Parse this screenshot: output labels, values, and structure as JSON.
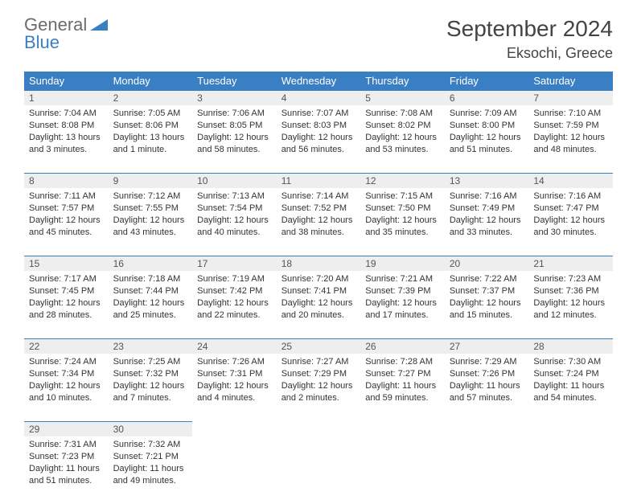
{
  "logo": {
    "line1": "General",
    "line2": "Blue"
  },
  "title": "September 2024",
  "location": "Eksochi, Greece",
  "colors": {
    "header_bg": "#3a7fc4",
    "header_text": "#ffffff",
    "daynum_bg": "#eeeeee",
    "rule": "#3a7fc4",
    "text": "#333333",
    "logo_gray": "#6b6b6b",
    "logo_blue": "#3a7fc4"
  },
  "weekdays": [
    "Sunday",
    "Monday",
    "Tuesday",
    "Wednesday",
    "Thursday",
    "Friday",
    "Saturday"
  ],
  "weeks": [
    [
      {
        "n": "1",
        "sr": "7:04 AM",
        "ss": "8:08 PM",
        "dl": "13 hours and 3 minutes."
      },
      {
        "n": "2",
        "sr": "7:05 AM",
        "ss": "8:06 PM",
        "dl": "13 hours and 1 minute."
      },
      {
        "n": "3",
        "sr": "7:06 AM",
        "ss": "8:05 PM",
        "dl": "12 hours and 58 minutes."
      },
      {
        "n": "4",
        "sr": "7:07 AM",
        "ss": "8:03 PM",
        "dl": "12 hours and 56 minutes."
      },
      {
        "n": "5",
        "sr": "7:08 AM",
        "ss": "8:02 PM",
        "dl": "12 hours and 53 minutes."
      },
      {
        "n": "6",
        "sr": "7:09 AM",
        "ss": "8:00 PM",
        "dl": "12 hours and 51 minutes."
      },
      {
        "n": "7",
        "sr": "7:10 AM",
        "ss": "7:59 PM",
        "dl": "12 hours and 48 minutes."
      }
    ],
    [
      {
        "n": "8",
        "sr": "7:11 AM",
        "ss": "7:57 PM",
        "dl": "12 hours and 45 minutes."
      },
      {
        "n": "9",
        "sr": "7:12 AM",
        "ss": "7:55 PM",
        "dl": "12 hours and 43 minutes."
      },
      {
        "n": "10",
        "sr": "7:13 AM",
        "ss": "7:54 PM",
        "dl": "12 hours and 40 minutes."
      },
      {
        "n": "11",
        "sr": "7:14 AM",
        "ss": "7:52 PM",
        "dl": "12 hours and 38 minutes."
      },
      {
        "n": "12",
        "sr": "7:15 AM",
        "ss": "7:50 PM",
        "dl": "12 hours and 35 minutes."
      },
      {
        "n": "13",
        "sr": "7:16 AM",
        "ss": "7:49 PM",
        "dl": "12 hours and 33 minutes."
      },
      {
        "n": "14",
        "sr": "7:16 AM",
        "ss": "7:47 PM",
        "dl": "12 hours and 30 minutes."
      }
    ],
    [
      {
        "n": "15",
        "sr": "7:17 AM",
        "ss": "7:45 PM",
        "dl": "12 hours and 28 minutes."
      },
      {
        "n": "16",
        "sr": "7:18 AM",
        "ss": "7:44 PM",
        "dl": "12 hours and 25 minutes."
      },
      {
        "n": "17",
        "sr": "7:19 AM",
        "ss": "7:42 PM",
        "dl": "12 hours and 22 minutes."
      },
      {
        "n": "18",
        "sr": "7:20 AM",
        "ss": "7:41 PM",
        "dl": "12 hours and 20 minutes."
      },
      {
        "n": "19",
        "sr": "7:21 AM",
        "ss": "7:39 PM",
        "dl": "12 hours and 17 minutes."
      },
      {
        "n": "20",
        "sr": "7:22 AM",
        "ss": "7:37 PM",
        "dl": "12 hours and 15 minutes."
      },
      {
        "n": "21",
        "sr": "7:23 AM",
        "ss": "7:36 PM",
        "dl": "12 hours and 12 minutes."
      }
    ],
    [
      {
        "n": "22",
        "sr": "7:24 AM",
        "ss": "7:34 PM",
        "dl": "12 hours and 10 minutes."
      },
      {
        "n": "23",
        "sr": "7:25 AM",
        "ss": "7:32 PM",
        "dl": "12 hours and 7 minutes."
      },
      {
        "n": "24",
        "sr": "7:26 AM",
        "ss": "7:31 PM",
        "dl": "12 hours and 4 minutes."
      },
      {
        "n": "25",
        "sr": "7:27 AM",
        "ss": "7:29 PM",
        "dl": "12 hours and 2 minutes."
      },
      {
        "n": "26",
        "sr": "7:28 AM",
        "ss": "7:27 PM",
        "dl": "11 hours and 59 minutes."
      },
      {
        "n": "27",
        "sr": "7:29 AM",
        "ss": "7:26 PM",
        "dl": "11 hours and 57 minutes."
      },
      {
        "n": "28",
        "sr": "7:30 AM",
        "ss": "7:24 PM",
        "dl": "11 hours and 54 minutes."
      }
    ],
    [
      {
        "n": "29",
        "sr": "7:31 AM",
        "ss": "7:23 PM",
        "dl": "11 hours and 51 minutes."
      },
      {
        "n": "30",
        "sr": "7:32 AM",
        "ss": "7:21 PM",
        "dl": "11 hours and 49 minutes."
      },
      null,
      null,
      null,
      null,
      null
    ]
  ],
  "labels": {
    "sunrise": "Sunrise:",
    "sunset": "Sunset:",
    "daylight": "Daylight:"
  }
}
